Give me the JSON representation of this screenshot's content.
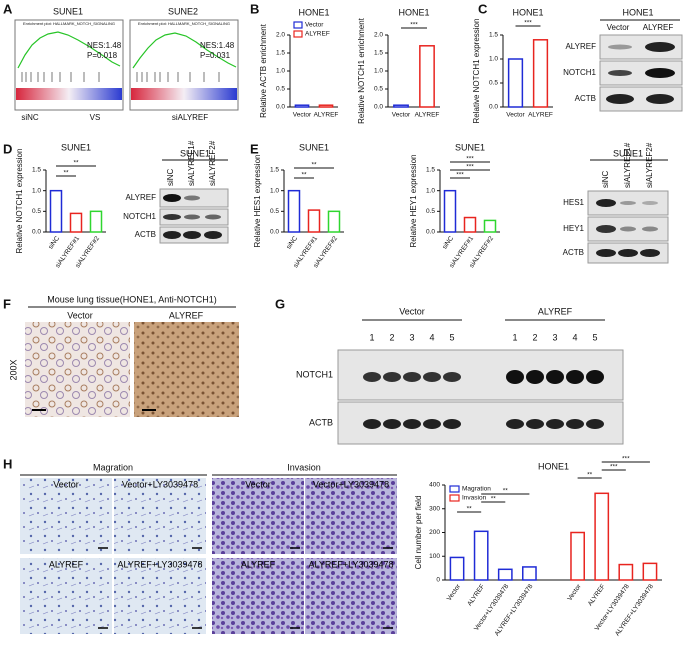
{
  "panels": {
    "A": {
      "label": "A",
      "plots": [
        {
          "title": "SUNE1",
          "plot_title": "Enrichment plot: HALLMARK_NOTCH_SIGNALING",
          "nes": "NES:1.48",
          "p": "P=0.018"
        },
        {
          "title": "SUNE2",
          "plot_title": "Enrichment plot: HALLMARK_NOTCH_SIGNALING",
          "nes": "NES:1.48",
          "p": "P=0.031"
        }
      ],
      "left": "siNC",
      "mid": "VS",
      "right": "siALYREF"
    },
    "B": {
      "label": "B"
    },
    "C": {
      "label": "C",
      "blot": {
        "title": "HONE1",
        "lanes": [
          "Vector",
          "ALYREF"
        ],
        "rows": [
          "ALYREF",
          "NOTCH1",
          "ACTB"
        ]
      }
    },
    "D": {
      "label": "D",
      "blot": {
        "title": "SUNE1",
        "lanes": [
          "siNC",
          "siALYREF1#",
          "siALYREF2#"
        ],
        "rows": [
          "ALYREF",
          "NOTCH1",
          "ACTB"
        ]
      }
    },
    "E": {
      "label": "E",
      "blot": {
        "title": "SUNE1",
        "lanes": [
          "siNC",
          "siALYREF1#",
          "siALYREF2#"
        ],
        "rows": [
          "HES1",
          "HEY1",
          "ACTB"
        ]
      }
    },
    "F": {
      "label": "F",
      "title": "Mouse lung tissue(HONE1, Anti-NOTCH1)",
      "groups": [
        "Vector",
        "ALYREF"
      ],
      "magnification": "200X"
    },
    "G": {
      "label": "G",
      "groups": [
        "Vector",
        "ALYREF"
      ],
      "lanes": [
        "1",
        "2",
        "3",
        "4",
        "5"
      ],
      "rows": [
        "NOTCH1",
        "ACTB"
      ]
    },
    "H": {
      "label": "H",
      "sections": [
        "Magration",
        "Invasion"
      ],
      "images": [
        "Vector",
        "Vector+LY3039478",
        "ALYREF",
        "ALYREF+LY3039478"
      ]
    }
  },
  "chart_data": [
    {
      "type": "bar",
      "title": "HONE1",
      "ylabel": "Relative ACTB enrichment",
      "categories": [
        "Vector",
        "ALYREF"
      ],
      "values": [
        0.05,
        0.05
      ],
      "colors": [
        "#1f2bd6",
        "#e8241f"
      ],
      "ylim": [
        0,
        2
      ],
      "yticks": [
        {
          "value": 0,
          "label": "0.0"
        },
        {
          "value": 0.5,
          "label": "0.5"
        },
        {
          "value": 1,
          "label": "1.0"
        },
        {
          "value": 1.5,
          "label": "1.5"
        },
        {
          "value": 2,
          "label": "2.0"
        }
      ],
      "legend": "upper left"
    },
    {
      "type": "bar",
      "title": "HONE1",
      "ylabel": "Relative NOTCH1 enrichment",
      "categories": [
        "Vector",
        "ALYREF"
      ],
      "values": [
        0.05,
        1.7
      ],
      "colors": [
        "#1f2bd6",
        "#e8241f"
      ],
      "ylim": [
        0,
        2
      ],
      "yticks": [
        {
          "value": 0,
          "label": "0.0"
        },
        {
          "value": 0.5,
          "label": "0.5"
        },
        {
          "value": 1,
          "label": "1.0"
        },
        {
          "value": 1.5,
          "label": "1.5"
        },
        {
          "value": 2,
          "label": "2.0"
        }
      ],
      "annotations": [
        "***"
      ]
    },
    {
      "type": "bar",
      "title": "HONE1",
      "ylabel": "Relative NOTCH1 expression",
      "categories": [
        "Vector",
        "ALYREF"
      ],
      "values": [
        1.0,
        1.4
      ],
      "colors": [
        "#1f2bd6",
        "#e8241f"
      ],
      "ylim": [
        0,
        1.5
      ],
      "yticks": [
        {
          "value": 0,
          "label": "0.0"
        },
        {
          "value": 0.5,
          "label": "0.5"
        },
        {
          "value": 1,
          "label": "1.0"
        },
        {
          "value": 1.5,
          "label": "1.5"
        }
      ],
      "annotations": [
        "***"
      ]
    },
    {
      "type": "bar",
      "title": "SUNE1",
      "ylabel": "Relative NOTCH1 expression",
      "categories": [
        "siNC",
        "siALYREF#1",
        "siALYREF#2"
      ],
      "values": [
        1.0,
        0.45,
        0.5
      ],
      "colors": [
        "#1f2bd6",
        "#e8241f",
        "#2fd62f"
      ],
      "ylim": [
        0,
        1.5
      ],
      "yticks": [
        {
          "value": 0,
          "label": "0.0"
        },
        {
          "value": 0.5,
          "label": "0.5"
        },
        {
          "value": 1,
          "label": "1.0"
        },
        {
          "value": 1.5,
          "label": "1.5"
        }
      ],
      "annotations": [
        "**",
        "**"
      ]
    },
    {
      "type": "bar",
      "title": "SUNE1",
      "ylabel": "Relative HES1 expression",
      "categories": [
        "siNC",
        "siALYREF#1",
        "siALYREF#2"
      ],
      "values": [
        1.0,
        0.53,
        0.5
      ],
      "colors": [
        "#1f2bd6",
        "#e8241f",
        "#2fd62f"
      ],
      "ylim": [
        0,
        1.5
      ],
      "yticks": [
        {
          "value": 0,
          "label": "0.0"
        },
        {
          "value": 0.5,
          "label": "0.5"
        },
        {
          "value": 1,
          "label": "1.0"
        },
        {
          "value": 1.5,
          "label": "1.5"
        }
      ],
      "annotations": [
        "**",
        "**"
      ]
    },
    {
      "type": "bar",
      "title": "SUNE1",
      "ylabel": "Relative HEY1 expression",
      "categories": [
        "siNC",
        "siALYREF#1",
        "siALYREF#2"
      ],
      "values": [
        1.0,
        0.35,
        0.28
      ],
      "colors": [
        "#1f2bd6",
        "#e8241f",
        "#2fd62f"
      ],
      "ylim": [
        0,
        1.5
      ],
      "yticks": [
        {
          "value": 0,
          "label": "0.0"
        },
        {
          "value": 0.5,
          "label": "0.5"
        },
        {
          "value": 1,
          "label": "1.0"
        },
        {
          "value": 1.5,
          "label": "1.5"
        }
      ],
      "annotations": [
        "***",
        "***",
        "***"
      ]
    },
    {
      "type": "grouped_bar",
      "title": "HONE1",
      "ylabel": "Cell number per field",
      "categories": [
        "Vector",
        "ALYREF",
        "Vector+LY3039478",
        "ALYREF+LY3039478"
      ],
      "series": [
        {
          "name": "Magration",
          "color": "#1f2bd6",
          "values": [
            95,
            205,
            45,
            55
          ]
        },
        {
          "name": "Invasion",
          "color": "#e8241f",
          "values": [
            200,
            365,
            65,
            70
          ]
        }
      ],
      "ylim": [
        0,
        400
      ],
      "yticks": [
        0,
        100,
        200,
        300,
        400
      ],
      "annotations": [
        "**",
        "**",
        "**",
        "**",
        "***",
        "***"
      ],
      "legend": "upper left"
    }
  ]
}
